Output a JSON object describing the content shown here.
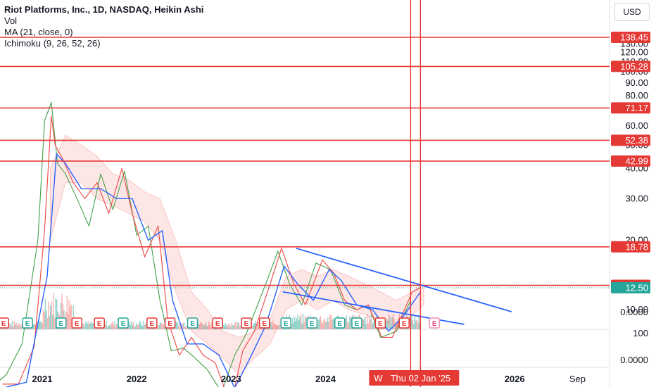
{
  "header": {
    "title": "Riot Platforms, Inc., 1D, NASDAQ, Heikin Ashi",
    "indicators": [
      "Vol",
      "MA (21, close, 0)",
      "Ichimoku (9, 26, 52, 26)"
    ],
    "currency_button": "USD"
  },
  "colors": {
    "hline": "#e53935",
    "trend": "#2962ff",
    "price_badge": "#e53935",
    "current_badge": "#26a69a",
    "earnings": "#e53935",
    "ma": "#2962ff",
    "price_green": "#26a69a",
    "price_red": "#ef5350",
    "lagging": "#43a047"
  },
  "chart_data": {
    "type": "line",
    "x_tick_labels": [
      "2021",
      "2022",
      "2023",
      "2024",
      "2025",
      "2026",
      "Sep"
    ],
    "x_tick_dates": [
      "2021-01-01",
      "2022-01-01",
      "2023-01-01",
      "2024-01-01",
      "2025-01-01",
      "2026-01-01",
      "2026-09-01"
    ],
    "crosshair_label": "Thu 02 Jan '25",
    "crosshair_date": "2025-01-02",
    "crosshair_prefix": "W",
    "y_scale": "log",
    "y_tick_labels": [
      "130.00",
      "120.00",
      "110.00",
      "100.00",
      "90.00",
      "80.00",
      "70.00",
      "60.00",
      "50.00",
      "40.00",
      "30.00",
      "20.00",
      "10.00",
      "0.0000"
    ],
    "y_tick_values": [
      130,
      120,
      110,
      100,
      90,
      80,
      70,
      60,
      50,
      40,
      30,
      20,
      10,
      0
    ],
    "volume_pane_ticks": [
      "100",
      "0.0000"
    ],
    "horizontal_levels": [
      {
        "label": "138.45",
        "value": 138.45
      },
      {
        "label": "105.28",
        "value": 105.28
      },
      {
        "label": "71.17",
        "value": 71.17
      },
      {
        "label": "52.38",
        "value": 52.38
      },
      {
        "label": "42.99",
        "value": 42.99
      },
      {
        "label": "18.78",
        "value": 18.78
      },
      {
        "label": "12.81",
        "value": 12.81
      }
    ],
    "current_price": {
      "label": "12.50",
      "value": 12.5
    },
    "price_series": {
      "name": "",
      "x": [
        "2020-08-01",
        "2020-10-01",
        "2020-12-01",
        "2021-01-10",
        "2021-02-05",
        "2021-02-20",
        "2021-03-20",
        "2021-05-01",
        "2021-06-15",
        "2021-08-01",
        "2021-09-15",
        "2021-11-05",
        "2021-12-15",
        "2022-02-01",
        "2022-03-25",
        "2022-05-01",
        "2022-06-15",
        "2022-08-01",
        "2022-09-15",
        "2022-11-01",
        "2022-12-31",
        "2023-02-15",
        "2023-04-01",
        "2023-06-01",
        "2023-07-15",
        "2023-09-01",
        "2023-10-15",
        "2023-12-20",
        "2024-02-01",
        "2024-03-15",
        "2024-05-01",
        "2024-06-15",
        "2024-08-05",
        "2024-09-15",
        "2024-11-01",
        "2024-12-01",
        "2025-01-02"
      ],
      "y": [
        4.5,
        4.5,
        6.8,
        22,
        66,
        50,
        44,
        35,
        30,
        35,
        26,
        40,
        26,
        17,
        23,
        9,
        6.2,
        7.5,
        6.2,
        5.7,
        3.5,
        6.5,
        8.0,
        13,
        18.5,
        13,
        10.5,
        16.5,
        14.5,
        11,
        10,
        10.5,
        7.5,
        7.5,
        10,
        12,
        12.5
      ]
    },
    "ma_series": {
      "name": "",
      "x": [
        "2020-08-01",
        "2020-11-01",
        "2021-01-20",
        "2021-02-25",
        "2021-04-01",
        "2021-06-01",
        "2021-08-15",
        "2021-10-15",
        "2021-12-15",
        "2022-02-15",
        "2022-04-10",
        "2022-05-20",
        "2022-07-15",
        "2022-09-15",
        "2022-11-15",
        "2023-01-15",
        "2023-03-15",
        "2023-05-15",
        "2023-07-25",
        "2023-09-15",
        "2023-11-15",
        "2024-01-15",
        "2024-03-01",
        "2024-05-01",
        "2024-07-01",
        "2024-09-01",
        "2024-11-01",
        "2025-01-02"
      ],
      "y": [
        4.3,
        4.6,
        14,
        46,
        42,
        33,
        33,
        30,
        30,
        20,
        22,
        11,
        7,
        7,
        6.2,
        4.3,
        6,
        8.5,
        15.5,
        13,
        11,
        15,
        13.5,
        10.5,
        10,
        8,
        9.5,
        12
      ]
    },
    "lagging_series": {
      "name": "",
      "x": [
        "2020-06-15",
        "2020-08-15",
        "2020-10-15",
        "2020-12-15",
        "2021-01-10",
        "2021-02-05",
        "2021-03-01",
        "2021-04-01",
        "2021-05-15",
        "2021-07-01",
        "2021-08-15",
        "2021-10-01",
        "2021-11-15",
        "2022-01-01",
        "2022-02-15",
        "2022-04-01",
        "2022-05-15",
        "2022-07-01",
        "2022-08-15",
        "2022-10-01",
        "2022-11-25",
        "2023-01-15",
        "2023-03-01",
        "2023-05-15",
        "2023-07-01",
        "2023-08-15",
        "2023-10-01",
        "2023-11-25",
        "2024-01-20",
        "2024-03-15",
        "2024-05-01",
        "2024-06-15",
        "2024-08-01",
        "2024-10-01",
        "2024-11-25"
      ],
      "y": [
        4.3,
        5,
        7,
        20,
        63,
        75,
        42,
        38,
        30,
        23,
        38,
        27,
        39,
        21,
        23,
        11,
        6.5,
        6.7,
        6,
        5.3,
        4.1,
        6.2,
        7.8,
        13,
        18,
        13,
        10.5,
        16,
        15,
        10.5,
        10,
        10.5,
        7.5,
        8,
        11
      ]
    },
    "cloud": {
      "name": "",
      "x": [
        "2021-02-01",
        "2021-04-01",
        "2021-06-01",
        "2021-08-01",
        "2021-10-01",
        "2021-12-01",
        "2022-02-01",
        "2022-04-01",
        "2022-06-01",
        "2022-08-01",
        "2022-10-01",
        "2022-12-01",
        "2023-02-01",
        "2023-04-01",
        "2023-06-01",
        "2023-08-01",
        "2023-10-01",
        "2023-12-01",
        "2024-02-01",
        "2024-04-01",
        "2024-06-01",
        "2024-08-01",
        "2024-10-01",
        "2024-12-01",
        "2025-01-15"
      ],
      "upper": [
        40,
        55,
        50,
        45,
        38,
        36,
        32,
        30,
        20,
        12,
        10,
        8,
        7.5,
        8,
        9,
        14,
        15,
        14,
        15,
        14,
        13,
        12,
        11,
        12,
        13
      ],
      "lower": [
        20,
        35,
        35,
        30,
        28,
        26,
        24,
        20,
        12,
        8,
        7,
        6,
        5,
        6,
        7,
        10,
        11,
        10,
        11,
        10,
        9.5,
        9,
        8.5,
        9.5,
        10.5
      ]
    },
    "trendlines": [
      {
        "start": {
          "x": "2023-09-10",
          "y": 18.5
        },
        "end": {
          "x": "2025-12-20",
          "y": 9.8
        }
      },
      {
        "start": {
          "x": "2023-07-20",
          "y": 12.0
        },
        "end": {
          "x": "2025-06-20",
          "y": 8.6
        }
      }
    ],
    "earnings_markers": [
      {
        "date": "2020-08-05",
        "label": "E",
        "kind": "red"
      },
      {
        "date": "2020-11-05",
        "label": "E",
        "kind": "green"
      },
      {
        "date": "2021-03-15",
        "label": "E",
        "kind": "green"
      },
      {
        "date": "2021-05-15",
        "label": "E",
        "kind": "red"
      },
      {
        "date": "2021-08-10",
        "label": "E",
        "kind": "red"
      },
      {
        "date": "2021-11-10",
        "label": "E",
        "kind": "green"
      },
      {
        "date": "2022-03-01",
        "label": "E",
        "kind": "red"
      },
      {
        "date": "2022-05-10",
        "label": "E",
        "kind": "red"
      },
      {
        "date": "2022-08-05",
        "label": "E",
        "kind": "green"
      },
      {
        "date": "2022-11-10",
        "label": "E",
        "kind": "red"
      },
      {
        "date": "2023-03-01",
        "label": "E",
        "kind": "red"
      },
      {
        "date": "2023-05-10",
        "label": "E",
        "kind": "red"
      },
      {
        "date": "2023-08-01",
        "label": "E",
        "kind": "green"
      },
      {
        "date": "2023-11-10",
        "label": "E",
        "kind": "green"
      },
      {
        "date": "2024-02-25",
        "label": "E",
        "kind": "green"
      },
      {
        "date": "2024-05-01",
        "label": "E",
        "kind": "green"
      },
      {
        "date": "2024-07-31",
        "label": "E",
        "kind": "red"
      },
      {
        "date": "2024-10-31",
        "label": "E",
        "kind": "red"
      },
      {
        "date": "2025-02-25",
        "label": "E",
        "kind": "future"
      }
    ]
  }
}
